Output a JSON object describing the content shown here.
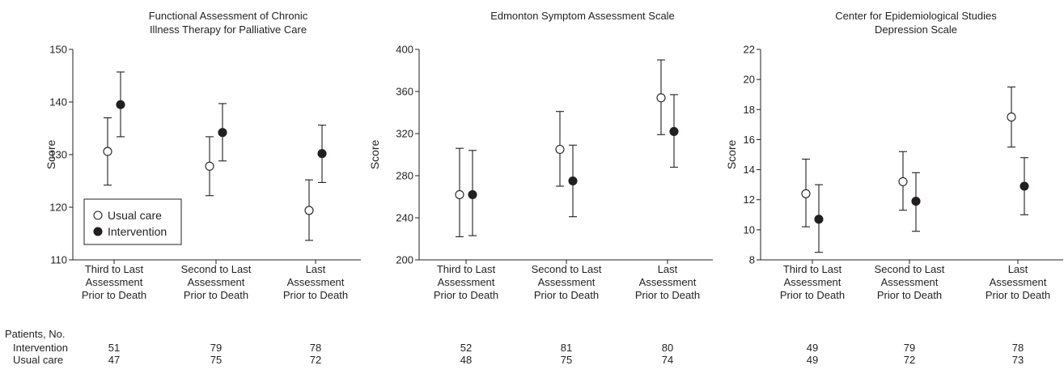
{
  "colors": {
    "ink": "#231f20",
    "usual_marker_fill": "#ffffff",
    "intervention_marker_fill": "#231f20"
  },
  "legend": {
    "placement": "bottom-left of first panel",
    "entries": [
      "Usual care",
      "Intervention"
    ]
  },
  "chart_data": [
    {
      "type": "scatter",
      "title_lines": [
        "Functional Assessment of Chronic",
        "Illness Therapy for Palliative Care"
      ],
      "ylabel": "Score",
      "ylim": [
        110,
        150
      ],
      "yticks": [
        110,
        120,
        130,
        140,
        150
      ],
      "categories": [
        [
          "Third to Last",
          "Assessment",
          "Prior to Death"
        ],
        [
          "Second to Last",
          "Assessment",
          "Prior to Death"
        ],
        [
          "Last",
          "Assessment",
          "Prior to Death"
        ]
      ],
      "series": [
        {
          "name": "Usual care",
          "values": [
            130.6,
            127.8,
            119.4
          ],
          "lower": [
            124.2,
            122.2,
            113.7
          ],
          "upper": [
            137.0,
            133.4,
            125.2
          ]
        },
        {
          "name": "Intervention",
          "values": [
            139.5,
            134.2,
            130.2
          ],
          "lower": [
            133.4,
            128.8,
            124.7
          ],
          "upper": [
            145.7,
            139.7,
            135.6
          ]
        }
      ]
    },
    {
      "type": "scatter",
      "title_lines": [
        "Edmonton Symptom Assessment Scale"
      ],
      "ylabel": "Score",
      "ylim": [
        200,
        400
      ],
      "yticks": [
        200,
        240,
        280,
        320,
        360,
        400
      ],
      "categories": [
        [
          "Third to Last",
          "Assessment",
          "Prior to Death"
        ],
        [
          "Second to Last",
          "Assessment",
          "Prior to Death"
        ],
        [
          "Last",
          "Assessment",
          "Prior to Death"
        ]
      ],
      "series": [
        {
          "name": "Usual care",
          "values": [
            262,
            305,
            354
          ],
          "lower": [
            222,
            270,
            319
          ],
          "upper": [
            306,
            341,
            390
          ]
        },
        {
          "name": "Intervention",
          "values": [
            262,
            275,
            322
          ],
          "lower": [
            223,
            241,
            288
          ],
          "upper": [
            304,
            309,
            357
          ]
        }
      ]
    },
    {
      "type": "scatter",
      "title_lines": [
        "Center for Epidemiological Studies",
        "Depression Scale"
      ],
      "ylabel": "Score",
      "ylim": [
        8,
        22
      ],
      "yticks": [
        8,
        10,
        12,
        14,
        16,
        18,
        20,
        22
      ],
      "categories": [
        [
          "Third to Last",
          "Assessment",
          "Prior to Death"
        ],
        [
          "Second to Last",
          "Assessment",
          "Prior to Death"
        ],
        [
          "Last",
          "Assessment",
          "Prior to Death"
        ]
      ],
      "series": [
        {
          "name": "Usual care",
          "values": [
            12.4,
            13.2,
            17.5
          ],
          "lower": [
            10.2,
            11.3,
            15.5
          ],
          "upper": [
            14.7,
            15.2,
            19.5
          ]
        },
        {
          "name": "Intervention",
          "values": [
            10.7,
            11.9,
            12.9
          ],
          "lower": [
            8.5,
            9.9,
            11.0
          ],
          "upper": [
            13.0,
            13.8,
            14.8
          ]
        }
      ]
    }
  ],
  "patients_table": {
    "heading": "Patients, No.",
    "rows": [
      {
        "label": "Intervention",
        "counts": [
          [
            "51",
            "79",
            "78"
          ],
          [
            "52",
            "81",
            "80"
          ],
          [
            "49",
            "79",
            "78"
          ]
        ]
      },
      {
        "label": "Usual care",
        "counts": [
          [
            "47",
            "75",
            "72"
          ],
          [
            "48",
            "75",
            "74"
          ],
          [
            "49",
            "72",
            "73"
          ]
        ]
      }
    ]
  }
}
